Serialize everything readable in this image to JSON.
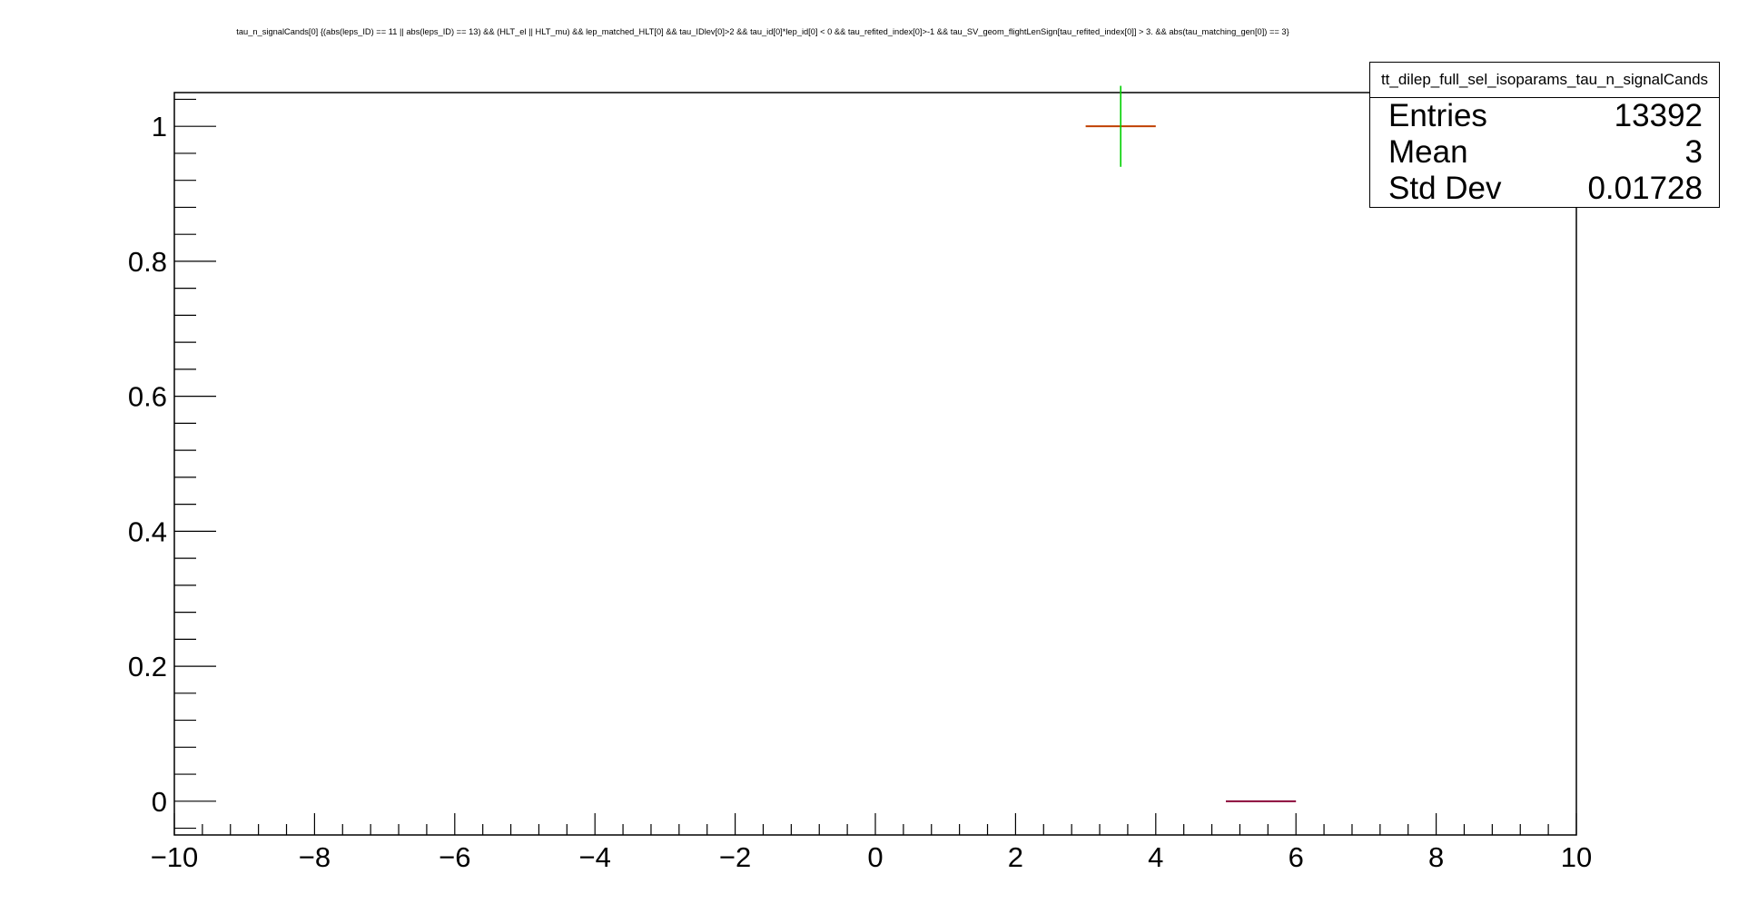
{
  "chart_data": {
    "type": "histogram",
    "title": "tau_n_signalCands[0] {(abs(leps_ID) == 11 || abs(leps_ID) == 13) && (HLT_el || HLT_mu) && lep_matched_HLT[0] && tau_IDlev[0]>2 && tau_id[0]*lep_id[0] < 0 && tau_refited_index[0]>-1 && tau_SV_geom_flightLenSign[tau_refited_index[0]] > 3. && abs(tau_matching_gen[0]) == 3}",
    "xlim": [
      -10,
      10
    ],
    "ylim": [
      -0.05,
      1.05
    ],
    "x_major_ticks": [
      -10,
      -8,
      -6,
      -4,
      -2,
      0,
      2,
      4,
      6,
      8,
      10
    ],
    "x_tick_labels": [
      "−10",
      "−8",
      "−6",
      "−4",
      "−2",
      "0",
      "2",
      "4",
      "6",
      "8",
      "10"
    ],
    "y_major_ticks": [
      0,
      0.2,
      0.4,
      0.6,
      0.8,
      1
    ],
    "y_tick_labels": [
      "0",
      "0.2",
      "0.4",
      "0.6",
      "0.8",
      "1"
    ],
    "grid": false,
    "series": [
      {
        "kind": "marker",
        "x": 3.5,
        "xerr": 0.5,
        "y": 1,
        "yerr": 0.06,
        "color": "#00d000",
        "hcolor": "#c04000"
      },
      {
        "kind": "segment",
        "x0": 5,
        "x1": 6,
        "y": 0,
        "color": "#8b0a3a"
      }
    ]
  },
  "stats_box": {
    "title": "tt_dilep_full_sel_isoparams_tau_n_signalCands",
    "position": "top-right",
    "rows": [
      {
        "label": "Entries",
        "value": "13392"
      },
      {
        "label": "Mean",
        "value": "3"
      },
      {
        "label": "Std Dev",
        "value": "0.01728"
      }
    ]
  }
}
